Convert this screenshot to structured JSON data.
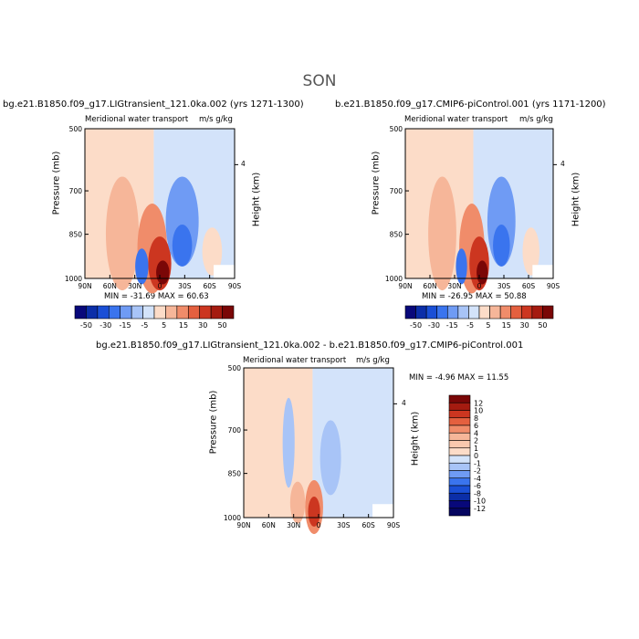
{
  "figure": {
    "season": "SON",
    "panel_left_title": "bg.e21.B1850.f09_g17.LIGtransient_121.0ka.002 (yrs 1271-1300)",
    "panel_right_title": "b.e21.B1850.f09_g17.CMIP6-piControl.001 (yrs 1171-1200)",
    "panel_diff_title": "bg.e21.B1850.f09_g17.LIGtransient_121.0ka.002 - b.e21.B1850.f09_g17.CMIP6-piControl.001",
    "subtitle": "Meridional water transport",
    "units": "m/s g/kg",
    "ylabel": "Pressure (mb)",
    "ylabel_right": "Height (km)",
    "height_tick": "4",
    "left_minmax": "MIN = -31.69   MAX =  60.63",
    "right_minmax": "MIN = -26.95   MAX =  50.88",
    "diff_minmax": "MIN =  -4.96   MAX =  11.55",
    "colors": {
      "scale": [
        "#08087a",
        "#0b2ea8",
        "#1a4fd6",
        "#3a74ee",
        "#6f9bf4",
        "#a8c4f7",
        "#d3e3fa",
        "#fcdcc8",
        "#f6b699",
        "#f08c6a",
        "#e4603f",
        "#cc3620",
        "#a51b10",
        "#7a0707"
      ]
    }
  },
  "chart_data": [
    {
      "type": "heatmap",
      "title": "bg.e21.B1850.f09_g17.LIGtransient_121.0ka.002 (yrs 1271-1300)",
      "subtitle": "Meridional water transport",
      "units": "m/s g/kg",
      "ylabel": "Pressure (mb)",
      "ylabel_right": "Height (km)",
      "x_ticks": [
        "90N",
        "60N",
        "30N",
        "0",
        "30S",
        "60S",
        "90S"
      ],
      "y_ticks": [
        "500",
        "700",
        "850",
        "1000"
      ],
      "colorbar_levels": [
        "-50",
        "-30",
        "-15",
        "-5",
        "5",
        "15",
        "30",
        "50"
      ],
      "min": -31.69,
      "max": 60.63
    },
    {
      "type": "heatmap",
      "title": "b.e21.B1850.f09_g17.CMIP6-piControl.001 (yrs 1171-1200)",
      "subtitle": "Meridional water transport",
      "units": "m/s g/kg",
      "ylabel": "Pressure (mb)",
      "ylabel_right": "Height (km)",
      "x_ticks": [
        "90N",
        "60N",
        "30N",
        "0",
        "30S",
        "60S",
        "90S"
      ],
      "y_ticks": [
        "500",
        "700",
        "850",
        "1000"
      ],
      "colorbar_levels": [
        "-50",
        "-30",
        "-15",
        "-5",
        "5",
        "15",
        "30",
        "50"
      ],
      "min": -26.95,
      "max": 50.88
    },
    {
      "type": "heatmap",
      "title": "bg.e21.B1850.f09_g17.LIGtransient_121.0ka.002 - b.e21.B1850.f09_g17.CMIP6-piControl.001",
      "subtitle": "Meridional water transport",
      "units": "m/s g/kg",
      "ylabel": "Pressure (mb)",
      "ylabel_right": "Height (km)",
      "x_ticks": [
        "90N",
        "60N",
        "30N",
        "0",
        "30S",
        "60S",
        "90S"
      ],
      "y_ticks": [
        "500",
        "700",
        "850",
        "1000"
      ],
      "colorbar_levels": [
        "12",
        "10",
        "8",
        "6",
        "4",
        "2",
        "1",
        "0",
        "-1",
        "-2",
        "-4",
        "-6",
        "-8",
        "-10",
        "-12"
      ],
      "min": -4.96,
      "max": 11.55
    }
  ]
}
